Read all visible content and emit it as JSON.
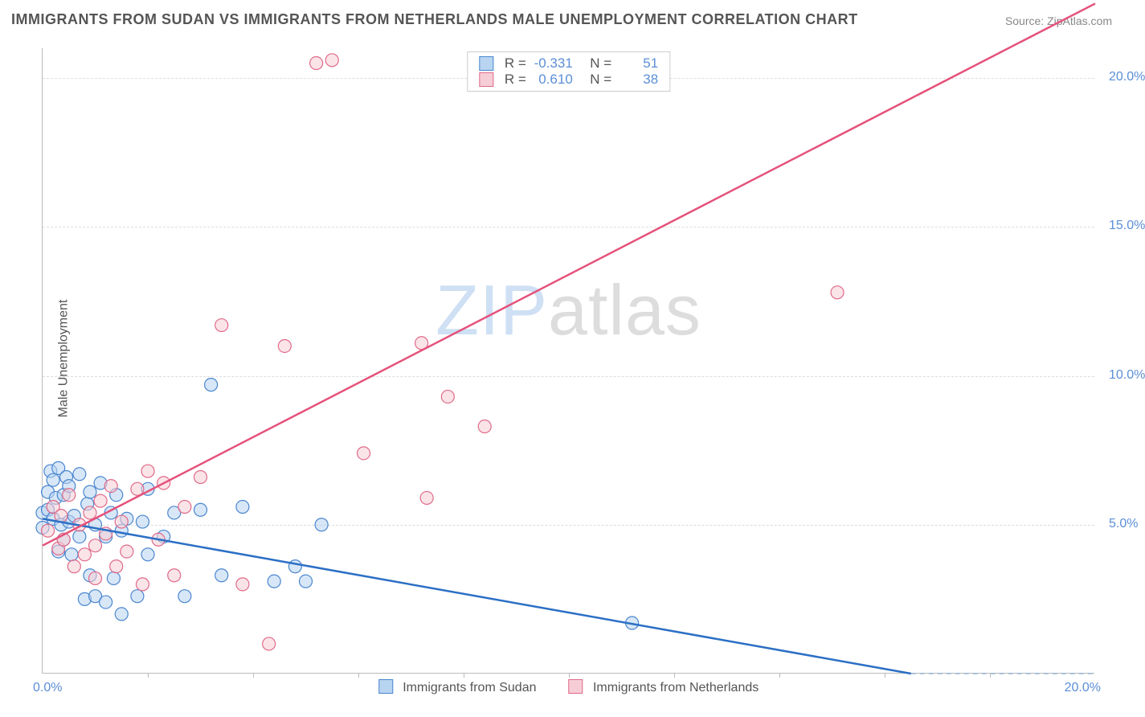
{
  "title": "IMMIGRANTS FROM SUDAN VS IMMIGRANTS FROM NETHERLANDS MALE UNEMPLOYMENT CORRELATION CHART",
  "source_label": "Source:",
  "source_name": "ZipAtlas.com",
  "ylabel": "Male Unemployment",
  "watermark_a": "ZIP",
  "watermark_b": "atlas",
  "chart": {
    "type": "scatter-with-regression",
    "xlim": [
      0,
      20
    ],
    "ylim": [
      0,
      21
    ],
    "x_ticks_minor": [
      2,
      4,
      6,
      8,
      10,
      12,
      14,
      16,
      18
    ],
    "x_tick_labels": {
      "0": "0.0%",
      "20": "20.0%"
    },
    "y_gridlines": [
      5,
      10,
      15,
      20
    ],
    "y_tick_labels": {
      "5": "5.0%",
      "10": "10.0%",
      "15": "15.0%",
      "20": "20.0%"
    },
    "background_color": "#ffffff",
    "grid_color": "#dddddd",
    "axis_color": "#bbbbbb",
    "tick_label_color": "#5b8fd6",
    "series": [
      {
        "id": "sudan",
        "label": "Immigrants from Sudan",
        "color_fill": "#b8d4f0",
        "color_stroke": "#4a86d0",
        "marker_radius": 8,
        "fill_opacity": 0.55,
        "R": "-0.331",
        "N": "51",
        "regression": {
          "x1": 0,
          "y1": 5.2,
          "x2": 16.5,
          "y2": 0.0,
          "dash_from_x": 16.5,
          "dash_to_x": 20,
          "dash_to_y": -1.1,
          "color": "#2b6fc5",
          "width": 2.5
        },
        "points": [
          [
            0.0,
            5.4
          ],
          [
            0.0,
            4.9
          ],
          [
            0.1,
            6.1
          ],
          [
            0.1,
            5.5
          ],
          [
            0.15,
            6.8
          ],
          [
            0.2,
            5.2
          ],
          [
            0.2,
            6.5
          ],
          [
            0.25,
            5.9
          ],
          [
            0.3,
            6.9
          ],
          [
            0.3,
            4.1
          ],
          [
            0.35,
            5.0
          ],
          [
            0.4,
            6.0
          ],
          [
            0.4,
            4.5
          ],
          [
            0.45,
            6.6
          ],
          [
            0.5,
            5.1
          ],
          [
            0.5,
            6.3
          ],
          [
            0.55,
            4.0
          ],
          [
            0.6,
            5.3
          ],
          [
            0.7,
            6.7
          ],
          [
            0.7,
            4.6
          ],
          [
            0.8,
            2.5
          ],
          [
            0.85,
            5.7
          ],
          [
            0.9,
            6.1
          ],
          [
            0.9,
            3.3
          ],
          [
            1.0,
            5.0
          ],
          [
            1.0,
            2.6
          ],
          [
            1.1,
            6.4
          ],
          [
            1.2,
            4.6
          ],
          [
            1.2,
            2.4
          ],
          [
            1.3,
            5.4
          ],
          [
            1.35,
            3.2
          ],
          [
            1.4,
            6.0
          ],
          [
            1.5,
            4.8
          ],
          [
            1.5,
            2.0
          ],
          [
            1.6,
            5.2
          ],
          [
            1.8,
            2.6
          ],
          [
            1.9,
            5.1
          ],
          [
            2.0,
            4.0
          ],
          [
            2.0,
            6.2
          ],
          [
            2.3,
            4.6
          ],
          [
            2.5,
            5.4
          ],
          [
            2.7,
            2.6
          ],
          [
            3.0,
            5.5
          ],
          [
            3.2,
            9.7
          ],
          [
            3.4,
            3.3
          ],
          [
            3.8,
            5.6
          ],
          [
            4.4,
            3.1
          ],
          [
            4.8,
            3.6
          ],
          [
            5.0,
            3.1
          ],
          [
            5.3,
            5.0
          ],
          [
            11.2,
            1.7
          ]
        ]
      },
      {
        "id": "netherlands",
        "label": "Immigrants from Netherlands",
        "color_fill": "#f6cdd6",
        "color_stroke": "#e06a8a",
        "marker_radius": 8,
        "fill_opacity": 0.55,
        "R": "0.610",
        "N": "38",
        "regression": {
          "x1": 0,
          "y1": 4.3,
          "x2": 20,
          "y2": 22.5,
          "color": "#e5517a",
          "width": 2.5
        },
        "points": [
          [
            0.1,
            4.8
          ],
          [
            0.2,
            5.6
          ],
          [
            0.3,
            4.2
          ],
          [
            0.35,
            5.3
          ],
          [
            0.4,
            4.5
          ],
          [
            0.5,
            6.0
          ],
          [
            0.6,
            3.6
          ],
          [
            0.7,
            5.0
          ],
          [
            0.8,
            4.0
          ],
          [
            0.9,
            5.4
          ],
          [
            1.0,
            4.3
          ],
          [
            1.0,
            3.2
          ],
          [
            1.1,
            5.8
          ],
          [
            1.2,
            4.7
          ],
          [
            1.3,
            6.3
          ],
          [
            1.4,
            3.6
          ],
          [
            1.5,
            5.1
          ],
          [
            1.6,
            4.1
          ],
          [
            1.8,
            6.2
          ],
          [
            1.9,
            3.0
          ],
          [
            2.0,
            6.8
          ],
          [
            2.2,
            4.5
          ],
          [
            2.3,
            6.4
          ],
          [
            2.5,
            3.3
          ],
          [
            2.7,
            5.6
          ],
          [
            3.0,
            6.6
          ],
          [
            3.4,
            11.7
          ],
          [
            3.8,
            3.0
          ],
          [
            4.3,
            1.0
          ],
          [
            4.6,
            11.0
          ],
          [
            5.2,
            20.5
          ],
          [
            5.5,
            20.6
          ],
          [
            6.1,
            7.4
          ],
          [
            7.2,
            11.1
          ],
          [
            7.3,
            5.9
          ],
          [
            7.7,
            9.3
          ],
          [
            8.4,
            8.3
          ],
          [
            15.1,
            12.8
          ]
        ]
      }
    ]
  },
  "legend_top": {
    "R_label": "R =",
    "N_label": "N ="
  }
}
